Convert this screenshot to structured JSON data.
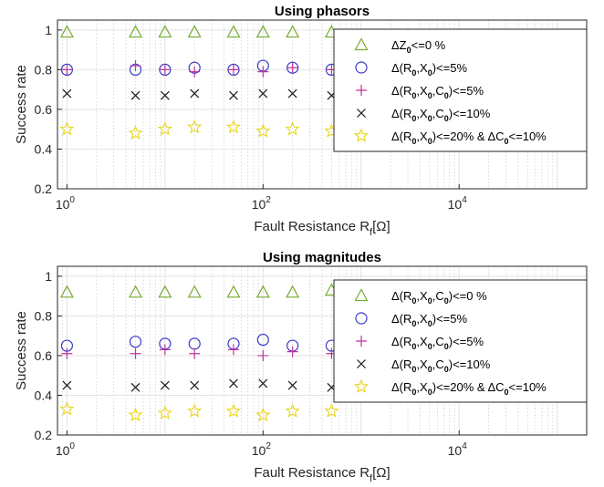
{
  "chart_data": [
    {
      "type": "scatter",
      "title": "Using phasors",
      "xlabel": "Fault Resistance R_f[Ω]",
      "ylabel": "Success rate",
      "xscale": "log",
      "xlim": [
        0.8,
        200000
      ],
      "ylim": [
        0.2,
        1.05
      ],
      "xticks": [
        "10^0",
        "10^2",
        "10^4"
      ],
      "yticks": [
        "0.2",
        "0.4",
        "0.6",
        "0.8",
        "1"
      ],
      "grid": true,
      "legend_position": "top-right",
      "x": [
        1,
        5,
        10,
        20,
        50,
        100,
        200,
        500
      ],
      "series": [
        {
          "name": "ΔZ₀<=0 %",
          "marker": "triangle",
          "color": "#77AC30",
          "values": [
            0.99,
            0.99,
            0.99,
            0.99,
            0.99,
            0.99,
            0.99,
            0.99
          ]
        },
        {
          "name": "Δ(R₀,X₀)<=5%",
          "marker": "circle",
          "color": "#3A3ACC",
          "values": [
            0.8,
            0.8,
            0.8,
            0.81,
            0.8,
            0.82,
            0.81,
            0.8
          ]
        },
        {
          "name": "Δ(R₀,X₀,C₀)<=5%",
          "marker": "plus",
          "color": "#C0349A",
          "values": [
            0.8,
            0.82,
            0.8,
            0.79,
            0.8,
            0.79,
            0.81,
            0.8
          ]
        },
        {
          "name": "Δ(R₀,X₀,C₀)<=10%",
          "marker": "x",
          "color": "#1a1a1a",
          "values": [
            0.68,
            0.67,
            0.67,
            0.68,
            0.67,
            0.68,
            0.68,
            0.67
          ]
        },
        {
          "name": "Δ(R₀,X₀)<=20% & ΔC₀<=10%",
          "marker": "star",
          "color": "#E8D61C",
          "values": [
            0.5,
            0.48,
            0.5,
            0.51,
            0.51,
            0.49,
            0.5,
            0.49
          ]
        }
      ]
    },
    {
      "type": "scatter",
      "title": "Using magnitudes",
      "xlabel": "Fault Resistance R_f[Ω]",
      "ylabel": "Success rate",
      "xscale": "log",
      "xlim": [
        0.8,
        200000
      ],
      "ylim": [
        0.2,
        1.05
      ],
      "xticks": [
        "10^0",
        "10^2",
        "10^4"
      ],
      "yticks": [
        "0.2",
        "0.4",
        "0.6",
        "0.8",
        "1"
      ],
      "grid": true,
      "legend_position": "top-right",
      "x": [
        1,
        5,
        10,
        20,
        50,
        100,
        200,
        500
      ],
      "series": [
        {
          "name": "Δ(R₀,X₀,C₀)<=0 %",
          "marker": "triangle",
          "color": "#77AC30",
          "values": [
            0.92,
            0.92,
            0.92,
            0.92,
            0.92,
            0.92,
            0.92,
            0.93
          ]
        },
        {
          "name": "Δ(R₀,X₀)<=5%",
          "marker": "circle",
          "color": "#3A3ACC",
          "values": [
            0.65,
            0.67,
            0.66,
            0.66,
            0.66,
            0.68,
            0.65,
            0.65
          ]
        },
        {
          "name": "Δ(R₀,X₀,C₀)<=5%",
          "marker": "plus",
          "color": "#C0349A",
          "values": [
            0.61,
            0.61,
            0.63,
            0.61,
            0.63,
            0.6,
            0.62,
            0.61
          ]
        },
        {
          "name": "Δ(R₀,X₀,C₀)<=10%",
          "marker": "x",
          "color": "#1a1a1a",
          "values": [
            0.45,
            0.44,
            0.45,
            0.45,
            0.46,
            0.46,
            0.45,
            0.44
          ]
        },
        {
          "name": "Δ(R₀,X₀)<=20% & ΔC₀<=10%",
          "marker": "star",
          "color": "#E8D61C",
          "values": [
            0.33,
            0.3,
            0.31,
            0.32,
            0.32,
            0.3,
            0.32,
            0.32
          ]
        }
      ]
    }
  ]
}
